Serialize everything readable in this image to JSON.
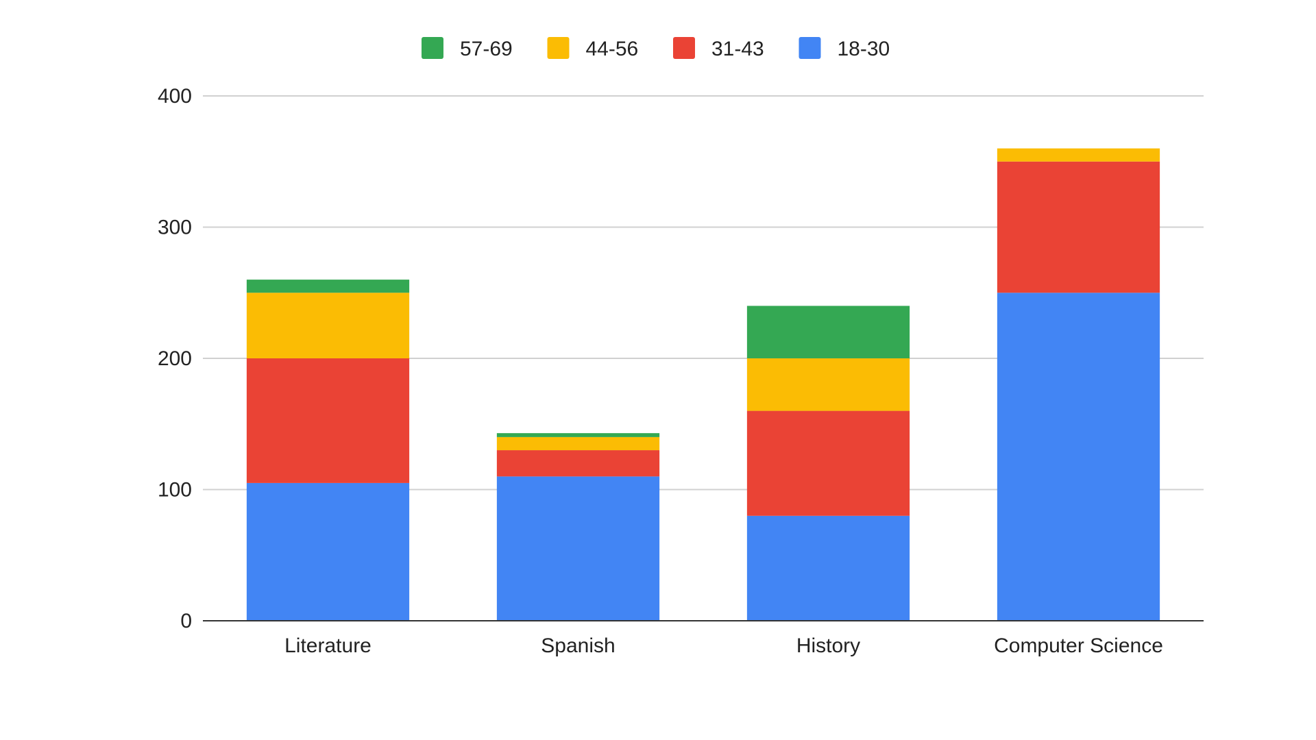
{
  "chart_data": {
    "type": "bar",
    "stacked": true,
    "title": "",
    "xlabel": "",
    "ylabel": "",
    "categories": [
      "Literature",
      "Spanish",
      "History",
      "Computer Science"
    ],
    "series": [
      {
        "name": "18-30",
        "color": "#4285F4",
        "values": [
          105,
          110,
          80,
          250
        ]
      },
      {
        "name": "31-43",
        "color": "#EA4335",
        "values": [
          95,
          20,
          80,
          100
        ]
      },
      {
        "name": "44-56",
        "color": "#FBBC04",
        "values": [
          50,
          10,
          40,
          10
        ]
      },
      {
        "name": "57-69",
        "color": "#34A853",
        "values": [
          10,
          3,
          40,
          0
        ]
      }
    ],
    "legend_order": [
      "57-69",
      "44-56",
      "31-43",
      "18-30"
    ],
    "ylim": [
      0,
      400
    ],
    "yticks": [
      0,
      100,
      200,
      300,
      400
    ],
    "grid": true,
    "legend_position": "top"
  }
}
